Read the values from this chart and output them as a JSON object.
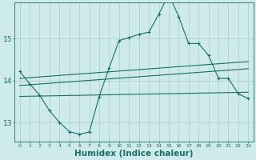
{
  "background_color": "#ceeaea",
  "grid_color": "#a8cccc",
  "line_color": "#1a6e6a",
  "xlabel": "Humidex (Indice chaleur)",
  "xlabel_fontsize": 7.5,
  "yticks": [
    13,
    14,
    15
  ],
  "xlim": [
    -0.5,
    23.5
  ],
  "ylim": [
    12.55,
    15.85
  ],
  "x": [
    0,
    1,
    2,
    3,
    4,
    5,
    6,
    7,
    8,
    9,
    10,
    11,
    12,
    13,
    14,
    15,
    16,
    17,
    18,
    19,
    20,
    21,
    22,
    23
  ],
  "curve1": [
    14.22,
    13.92,
    13.65,
    13.28,
    13.0,
    12.78,
    12.72,
    12.77,
    13.62,
    14.3,
    14.95,
    15.02,
    15.1,
    15.15,
    15.58,
    16.05,
    15.52,
    14.88,
    14.88,
    14.6,
    14.05,
    14.05,
    13.68,
    13.57
  ],
  "line1_x": [
    0,
    23
  ],
  "line1_y": [
    14.05,
    14.45
  ],
  "line2_x": [
    0,
    23
  ],
  "line2_y": [
    13.88,
    14.28
  ],
  "line3_x": [
    0,
    23
  ],
  "line3_y": [
    13.62,
    13.72
  ]
}
